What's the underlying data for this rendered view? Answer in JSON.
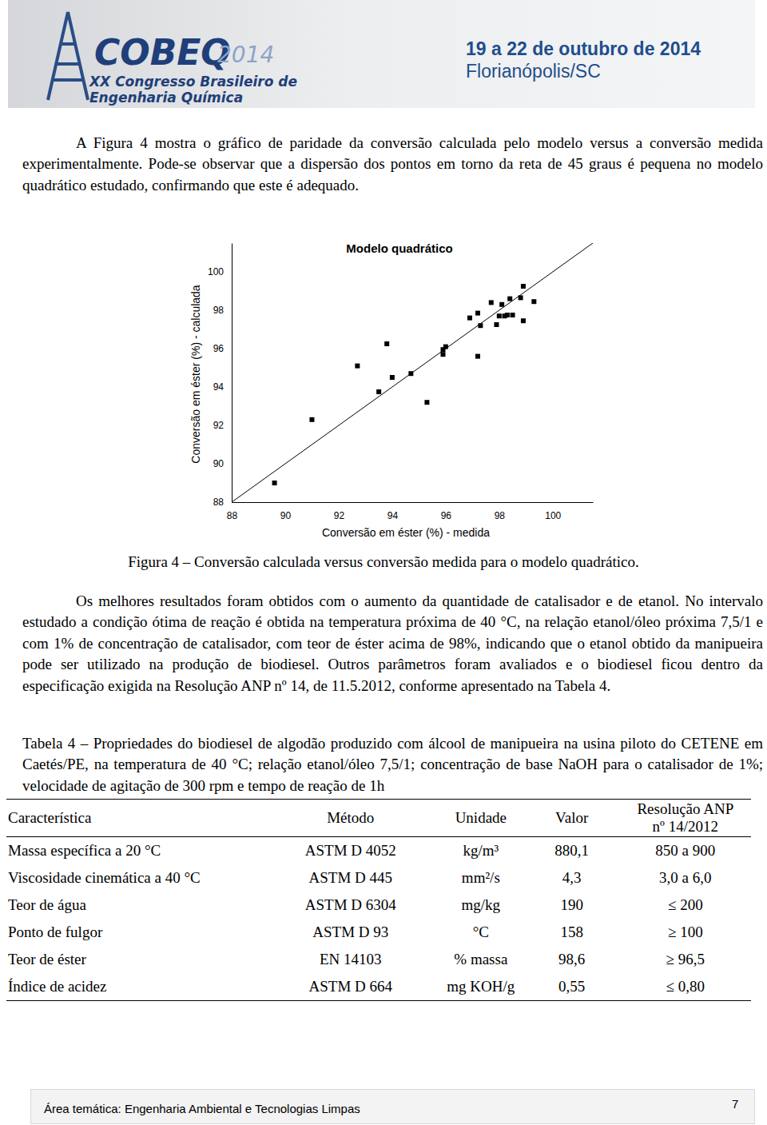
{
  "header": {
    "logo_main": "COBEQ",
    "logo_year": "2014",
    "logo_line1": "XX Congresso Brasileiro de",
    "logo_line2": "Engenharia Química",
    "dates": "19 a 22 de outubro de 2014",
    "place": "Florianópolis/SC"
  },
  "paragraphs": [
    "A Figura 4 mostra o gráfico de paridade da conversão calculada pelo modelo versus a conversão medida experimentalmente. Pode-se observar que a dispersão dos pontos em torno da reta de 45 graus é pequena no modelo quadrático estudado, confirmando que este é adequado.",
    "Os melhores resultados foram obtidos com o aumento da quantidade de catalisador e de etanol. No intervalo estudado a condição ótima de reação é obtida na temperatura próxima de 40 °C, na relação etanol/óleo próxima 7,5/1 e com 1% de concentração de catalisador, com teor de éster acima de 98%, indicando que o etanol obtido da manipueira pode ser utilizado na produção de biodiesel. Outros parâmetros foram avaliados e o biodiesel ficou dentro da especificação exigida na Resolução ANP nº 14, de 11.5.2012, conforme apresentado na Tabela 4."
  ],
  "chart_data": {
    "type": "scatter",
    "title": "Modelo quadrático",
    "x_label": "Conversão em éster (%) - medida",
    "y_label": "Conversão em éster (%) - calculada",
    "x": [
      89.6,
      91.0,
      92.7,
      93.5,
      93.8,
      94.0,
      94.7,
      95.3,
      95.9,
      95.9,
      96.0,
      96.9,
      97.2,
      97.2,
      97.3,
      97.7,
      97.9,
      98.0,
      98.1,
      98.2,
      98.3,
      98.4,
      98.5,
      98.8,
      98.9,
      98.9,
      99.3
    ],
    "values": [
      89.0,
      92.3,
      95.1,
      93.75,
      96.25,
      94.5,
      94.7,
      93.2,
      95.7,
      95.95,
      96.1,
      97.6,
      97.85,
      95.6,
      97.2,
      98.4,
      97.25,
      97.7,
      98.3,
      97.7,
      97.75,
      98.6,
      97.75,
      98.65,
      99.25,
      97.45,
      98.45
    ],
    "color": "#000000",
    "marker": "square",
    "xlim": [
      88,
      101.5
    ],
    "ylim": [
      88,
      101.5
    ],
    "xticks": [
      88,
      90,
      92,
      94,
      96,
      98,
      100
    ],
    "yticks": [
      88,
      90,
      92,
      94,
      96,
      98,
      100
    ],
    "grid": false
  },
  "figure_caption": "Figura 4 – Conversão calculada versus conversão medida para o modelo quadrático.",
  "table": {
    "caption": "Tabela 4 – Propriedades do biodiesel de algodão produzido com álcool de manipueira na usina piloto do CETENE em Caetés/PE, na temperatura de 40 °C; relação etanol/óleo 7,5/1; concentração de base NaOH para o catalisador de 1%; velocidade de agitação de 300 rpm e tempo de reação de 1h",
    "columns": [
      "Característica",
      "Método",
      "Unidade",
      "Valor",
      "Resolução ANP\nnº 14/2012"
    ],
    "rows": [
      [
        "Massa específica a 20 °C",
        "ASTM D 4052",
        "kg/m³",
        "880,1",
        "850 a 900"
      ],
      [
        "Viscosidade cinemática a 40 °C",
        "ASTM D 445",
        "mm²/s",
        "4,3",
        "3,0 a 6,0"
      ],
      [
        "Teor de água",
        "ASTM D 6304",
        "mg/kg",
        "190",
        "≤ 200"
      ],
      [
        "Ponto de fulgor",
        "ASTM D 93",
        "°C",
        "158",
        "≥ 100"
      ],
      [
        "Teor de éster",
        "EN 14103",
        "% massa",
        "98,6",
        "≥ 96,5"
      ],
      [
        "Índice de acidez",
        "ASTM D 664",
        "mg KOH/g",
        "0,55",
        "≤ 0,80"
      ]
    ]
  },
  "footer": {
    "area": "Área temática: Engenharia Ambiental e Tecnologias Limpas",
    "page": "7"
  }
}
